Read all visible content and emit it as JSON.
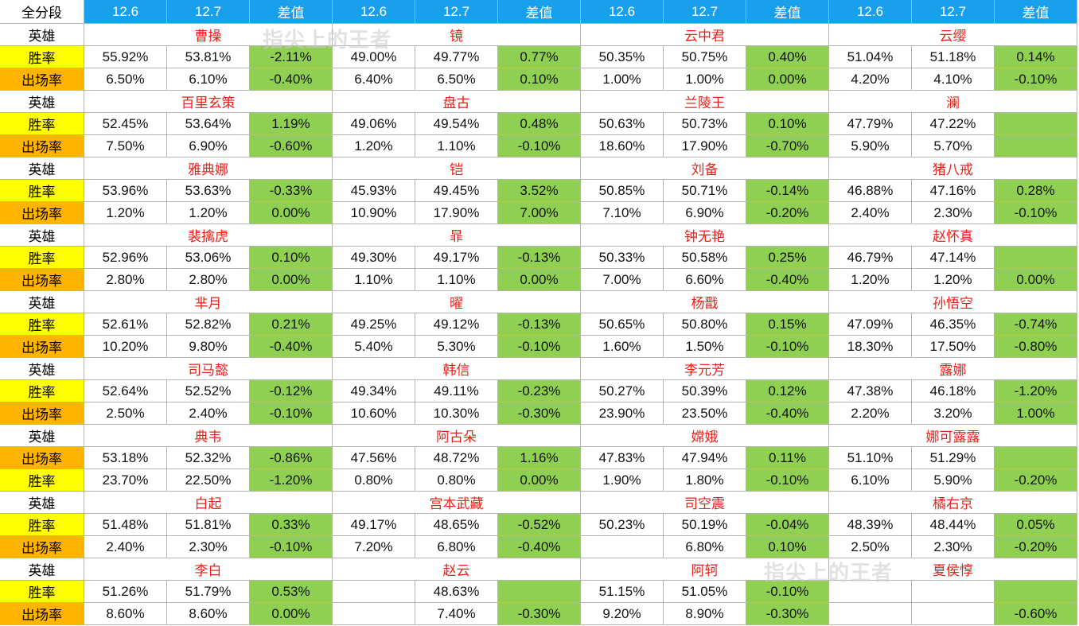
{
  "header": {
    "corner": "全分段",
    "columns": [
      "12.6",
      "12.7",
      "差值",
      "12.6",
      "12.7",
      "差值",
      "12.6",
      "12.7",
      "差值",
      "12.6",
      "12.7",
      "差值"
    ]
  },
  "hero_label": "英雄",
  "watermarks": [
    "指尖上的王者",
    "指尖上的王者"
  ],
  "groups": [
    {
      "heroes": [
        "曹操",
        "镜",
        "云中君",
        "云缨"
      ],
      "rows": [
        {
          "label": "胜率",
          "type": "win",
          "cells": [
            "55.92%",
            "53.81%",
            "-2.11%",
            "49.00%",
            "49.77%",
            "0.77%",
            "50.35%",
            "50.75%",
            "0.40%",
            "51.04%",
            "51.18%",
            "0.14%"
          ]
        },
        {
          "label": "出场率",
          "type": "play",
          "cells": [
            "6.50%",
            "6.10%",
            "-0.40%",
            "6.40%",
            "6.50%",
            "0.10%",
            "1.00%",
            "1.00%",
            "0.00%",
            "4.20%",
            "4.10%",
            "-0.10%"
          ]
        }
      ]
    },
    {
      "heroes": [
        "百里玄策",
        "盘古",
        "兰陵王",
        "澜"
      ],
      "rows": [
        {
          "label": "胜率",
          "type": "win",
          "cells": [
            "52.45%",
            "53.64%",
            "1.19%",
            "49.06%",
            "49.54%",
            "0.48%",
            "50.63%",
            "50.73%",
            "0.10%",
            "47.79%",
            "47.22%",
            ""
          ]
        },
        {
          "label": "出场率",
          "type": "play",
          "cells": [
            "7.50%",
            "6.90%",
            "-0.60%",
            "1.20%",
            "1.10%",
            "-0.10%",
            "18.60%",
            "17.90%",
            "-0.70%",
            "5.90%",
            "5.70%",
            ""
          ]
        }
      ]
    },
    {
      "heroes": [
        "雅典娜",
        "铠",
        "刘备",
        "猪八戒"
      ],
      "rows": [
        {
          "label": "胜率",
          "type": "win",
          "cells": [
            "53.96%",
            "53.63%",
            "-0.33%",
            "45.93%",
            "49.45%",
            "3.52%",
            "50.85%",
            "50.71%",
            "-0.14%",
            "46.88%",
            "47.16%",
            "0.28%"
          ]
        },
        {
          "label": "出场率",
          "type": "play",
          "cells": [
            "1.20%",
            "1.20%",
            "0.00%",
            "10.90%",
            "17.90%",
            "7.00%",
            "7.10%",
            "6.90%",
            "-0.20%",
            "2.40%",
            "2.30%",
            "-0.10%"
          ]
        }
      ]
    },
    {
      "heroes": [
        "裴擒虎",
        "暃",
        "钟无艳",
        "赵怀真"
      ],
      "rows": [
        {
          "label": "胜率",
          "type": "win",
          "cells": [
            "52.96%",
            "53.06%",
            "0.10%",
            "49.30%",
            "49.17%",
            "-0.13%",
            "50.33%",
            "50.58%",
            "0.25%",
            "46.79%",
            "47.14%",
            ""
          ]
        },
        {
          "label": "出场率",
          "type": "play",
          "cells": [
            "2.80%",
            "2.80%",
            "0.00%",
            "1.10%",
            "1.10%",
            "0.00%",
            "7.00%",
            "6.60%",
            "-0.40%",
            "1.20%",
            "1.20%",
            "0.00%"
          ]
        }
      ]
    },
    {
      "heroes": [
        "芈月",
        "曜",
        "杨戬",
        "孙悟空"
      ],
      "rows": [
        {
          "label": "胜率",
          "type": "win",
          "cells": [
            "52.61%",
            "52.82%",
            "0.21%",
            "49.25%",
            "49.12%",
            "-0.13%",
            "50.65%",
            "50.80%",
            "0.15%",
            "47.09%",
            "46.35%",
            "-0.74%"
          ]
        },
        {
          "label": "出场率",
          "type": "play",
          "cells": [
            "10.20%",
            "9.80%",
            "-0.40%",
            "5.40%",
            "5.30%",
            "-0.10%",
            "1.60%",
            "1.50%",
            "-0.10%",
            "18.30%",
            "17.50%",
            "-0.80%"
          ]
        }
      ]
    },
    {
      "heroes": [
        "司马懿",
        "韩信",
        "李元芳",
        "露娜"
      ],
      "rows": [
        {
          "label": "胜率",
          "type": "win",
          "cells": [
            "52.64%",
            "52.52%",
            "-0.12%",
            "49.34%",
            "49.11%",
            "-0.23%",
            "50.27%",
            "50.39%",
            "0.12%",
            "47.38%",
            "46.18%",
            "-1.20%"
          ]
        },
        {
          "label": "出场率",
          "type": "play",
          "cells": [
            "2.50%",
            "2.40%",
            "-0.10%",
            "10.60%",
            "10.30%",
            "-0.30%",
            "23.90%",
            "23.50%",
            "-0.40%",
            "2.20%",
            "3.20%",
            "1.00%"
          ]
        }
      ]
    },
    {
      "heroes": [
        "典韦",
        "阿古朵",
        "嫦娥",
        "娜可露露"
      ],
      "rows": [
        {
          "label": "出场率",
          "type": "play",
          "cells": [
            "53.18%",
            "52.32%",
            "-0.86%",
            "47.56%",
            "48.72%",
            "1.16%",
            "47.83%",
            "47.94%",
            "0.11%",
            "51.10%",
            "51.29%",
            ""
          ]
        },
        {
          "label": "胜率",
          "type": "win",
          "cells": [
            "23.70%",
            "22.50%",
            "-1.20%",
            "0.80%",
            "0.80%",
            "0.00%",
            "1.90%",
            "1.80%",
            "-0.10%",
            "6.10%",
            "5.90%",
            "-0.20%"
          ]
        }
      ]
    },
    {
      "heroes": [
        "白起",
        "宫本武藏",
        "司空震",
        "橘右京"
      ],
      "rows": [
        {
          "label": "胜率",
          "type": "win",
          "cells": [
            "51.48%",
            "51.81%",
            "0.33%",
            "49.17%",
            "48.65%",
            "-0.52%",
            "50.23%",
            "50.19%",
            "-0.04%",
            "48.39%",
            "48.44%",
            "0.05%"
          ]
        },
        {
          "label": "出场率",
          "type": "play",
          "cells": [
            "2.40%",
            "2.30%",
            "-0.10%",
            "7.20%",
            "6.80%",
            "-0.40%",
            "",
            "6.80%",
            "0.10%",
            "2.50%",
            "2.30%",
            "-0.20%"
          ]
        }
      ]
    },
    {
      "heroes": [
        "李白",
        "赵云",
        "阿轲",
        "夏侯惇"
      ],
      "rows": [
        {
          "label": "胜率",
          "type": "win",
          "cells": [
            "51.26%",
            "51.79%",
            "0.53%",
            "",
            "48.63%",
            "",
            "51.15%",
            "51.05%",
            "-0.10%",
            "",
            "",
            ""
          ]
        },
        {
          "label": "出场率",
          "type": "play",
          "cells": [
            "8.60%",
            "8.60%",
            "0.00%",
            "",
            "7.40%",
            "-0.30%",
            "9.20%",
            "8.90%",
            "-0.30%",
            "",
            "",
            "-0.60%"
          ]
        }
      ]
    }
  ]
}
